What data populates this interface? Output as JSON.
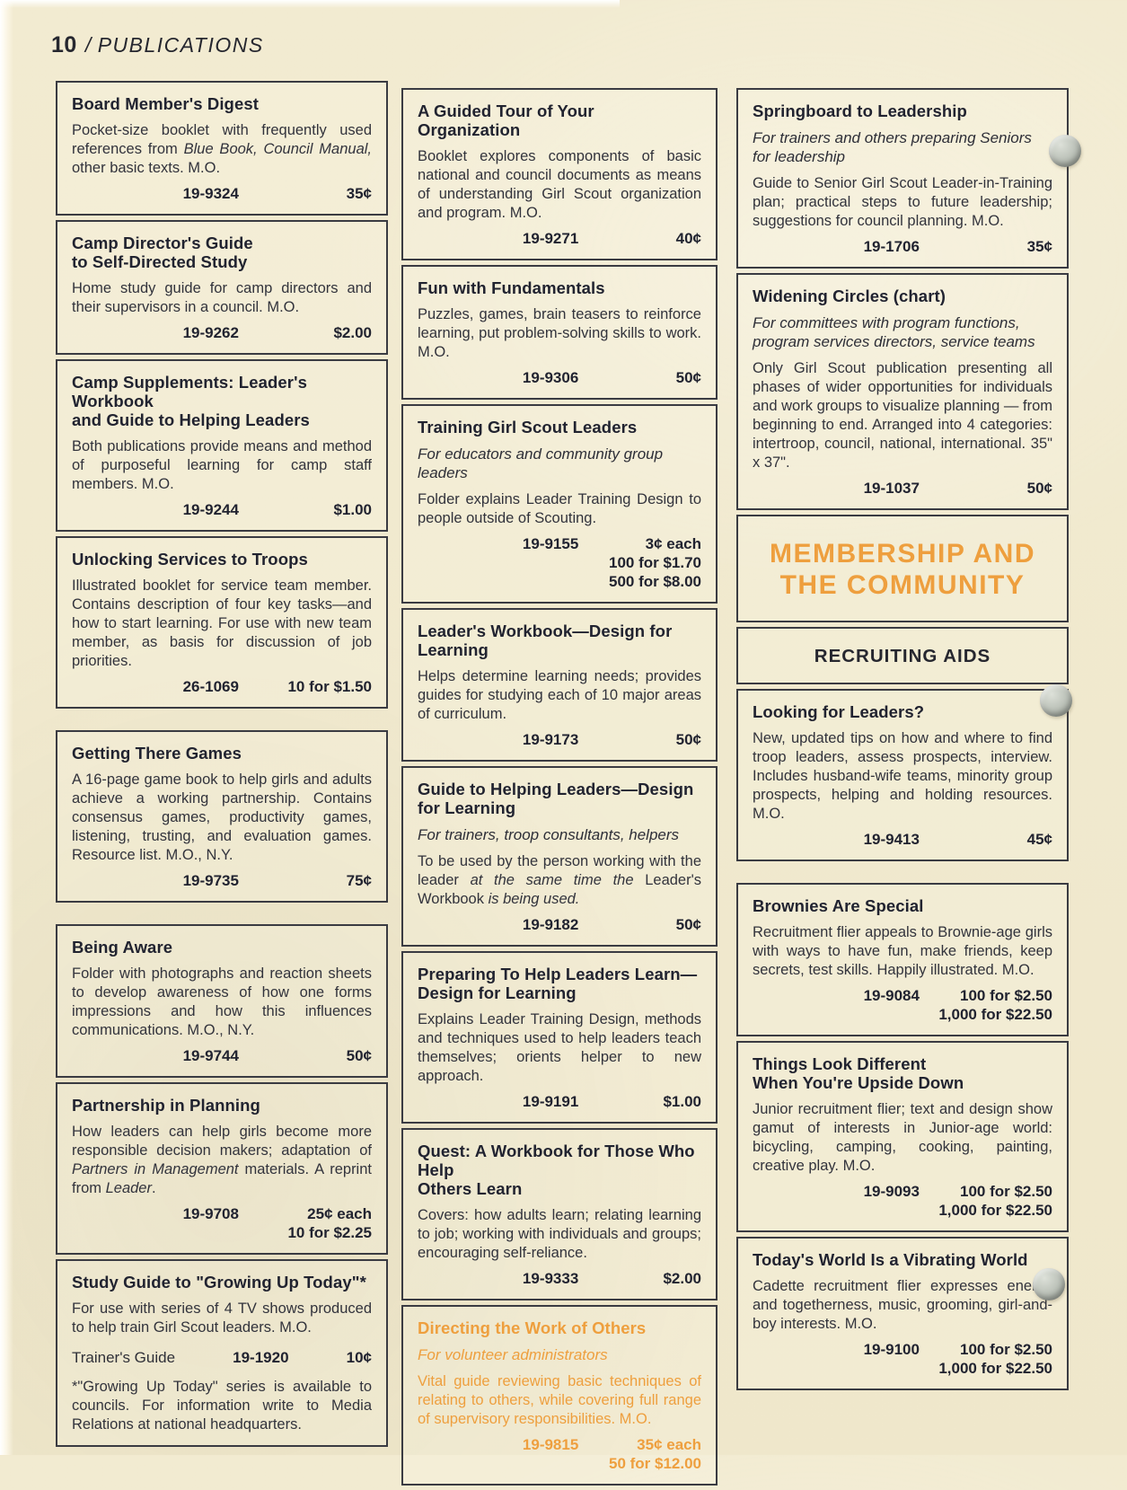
{
  "page": {
    "number": "10",
    "separator": "/",
    "title": "PUBLICATIONS"
  },
  "colors": {
    "accent_orange": "#ee9f3e",
    "paper": "#f1ead0",
    "ink": "#2f3038",
    "border": "#3a3b42"
  },
  "columns": [
    {
      "sections": [
        {
          "type": "item",
          "title": "Board Member's Digest",
          "body": "Pocket-size booklet with frequently used references from *Blue Book, Council Manual,* other basic texts. M.O.",
          "catalog_no": "19-9324",
          "prices": [
            "35¢"
          ]
        },
        {
          "type": "item",
          "title": "Camp Director's Guide\nto Self-Directed Study",
          "body": "Home study guide for camp directors and their supervisors in a council. M.O.",
          "catalog_no": "19-9262",
          "prices": [
            "$2.00"
          ]
        },
        {
          "type": "item",
          "title": "Camp Supplements: Leader's Workbook\nand Guide to Helping Leaders",
          "body": "Both publications provide means and method of purposeful learning for camp staff members. M.O.",
          "catalog_no": "19-9244",
          "prices": [
            "$1.00"
          ]
        },
        {
          "type": "item",
          "title": "Unlocking Services to Troops",
          "body": "Illustrated booklet for service team member. Contains description of four key tasks—and how to start learning. For use with new team member, as basis for discussion of job priorities.",
          "catalog_no": "26-1069",
          "prices": [
            "10 for $1.50"
          ]
        },
        {
          "type": "item",
          "gap_before": true,
          "title": "Getting There Games",
          "body": "A 16-page game book to help girls and adults achieve a working partnership. Contains consensus games, productivity games, listening, trusting, and evaluation games. Resource list. M.O., N.Y.",
          "catalog_no": "19-9735",
          "prices": [
            "75¢"
          ]
        },
        {
          "type": "item",
          "gap_before": true,
          "title": "Being Aware",
          "body": "Folder with photographs and reaction sheets to develop awareness of how one forms impressions and how this influences communications. M.O., N.Y.",
          "catalog_no": "19-9744",
          "prices": [
            "50¢"
          ]
        },
        {
          "type": "item",
          "title": "Partnership in Planning",
          "body": "How leaders can help girls become more responsible decision makers; adaptation of *Partners in Management* materials. A reprint from *Leader*.",
          "catalog_no": "19-9708",
          "prices": [
            "25¢ each",
            "10 for $2.25"
          ]
        },
        {
          "type": "item",
          "title": "Study Guide to \"Growing Up Today\"*",
          "body": "For use with series of 4 TV shows produced to help train Girl Scout leaders. M.O.",
          "rows": [
            {
              "label": "Trainer's Guide",
              "catalog_no": "19-1920",
              "price": "10¢"
            }
          ],
          "footnote": "*\"Growing Up Today\" series is available to councils. For information write to Media Relations at national headquarters."
        }
      ]
    },
    {
      "sections": [
        {
          "type": "item",
          "title": "A Guided Tour of Your Organization",
          "body": "Booklet explores components of basic national and council documents as means of understanding Girl Scout organization and program. M.O.",
          "catalog_no": "19-9271",
          "prices": [
            "40¢"
          ]
        },
        {
          "type": "item",
          "title": "Fun with Fundamentals",
          "body": "Puzzles, games, brain teasers to reinforce learning, put problem-solving skills to work. M.O.",
          "catalog_no": "19-9306",
          "prices": [
            "50¢"
          ]
        },
        {
          "type": "item",
          "title": "Training Girl Scout Leaders",
          "subtitle": "For educators and community group leaders",
          "body": "Folder explains Leader Training Design to people outside of Scouting.",
          "catalog_no": "19-9155",
          "prices": [
            "3¢ each",
            "100 for $1.70",
            "500 for $8.00"
          ]
        },
        {
          "type": "item",
          "title": "Leader's Workbook—Design for Learning",
          "body": "Helps determine learning needs; provides guides for studying each of 10 major areas of curriculum.",
          "catalog_no": "19-9173",
          "prices": [
            "50¢"
          ]
        },
        {
          "type": "item",
          "title": "Guide to Helping Leaders—Design\nfor Learning",
          "subtitle": "For trainers, troop consultants, helpers",
          "body": "To be used by the person working with the leader *at the same time the* Leader's Workbook *is being used.*",
          "catalog_no": "19-9182",
          "prices": [
            "50¢"
          ]
        },
        {
          "type": "item",
          "title": "Preparing To Help Leaders Learn—\nDesign for Learning",
          "body": "Explains Leader Training Design, methods and techniques used to help leaders teach themselves; orients helper to new approach.",
          "catalog_no": "19-9191",
          "prices": [
            "$1.00"
          ]
        },
        {
          "type": "item",
          "title": "Quest: A Workbook for Those Who Help\nOthers Learn",
          "body": "Covers: how adults learn; relating learning to job; working with individuals and groups; encouraging self-reliance.",
          "catalog_no": "19-9333",
          "prices": [
            "$2.00"
          ]
        },
        {
          "type": "item",
          "accent": true,
          "title": "Directing the Work of Others",
          "subtitle": "For volunteer administrators",
          "body": "Vital guide reviewing basic techniques of relating to others, while covering full range of supervisory responsibilities. M.O.",
          "catalog_no": "19-9815",
          "prices": [
            "35¢ each",
            "50 for $12.00"
          ]
        }
      ]
    },
    {
      "sections": [
        {
          "type": "item",
          "title": "Springboard to Leadership",
          "subtitle": "For trainers and others preparing Seniors for leadership",
          "body": "Guide to Senior Girl Scout Leader-in-Training plan; practical steps to future leadership; suggestions for council planning. M.O.",
          "catalog_no": "19-1706",
          "prices": [
            "35¢"
          ]
        },
        {
          "type": "item",
          "title": "Widening Circles (chart)",
          "subtitle": "For committees with program functions, program services directors, service teams",
          "body": "Only Girl Scout publication presenting all phases of wider opportunities for individuals and work groups to visualize planning — from beginning to end. Arranged into 4 categories: intertroop, council, national, international. 35\" x 37\".",
          "catalog_no": "19-1037",
          "prices": [
            "50¢"
          ]
        },
        {
          "type": "banner",
          "title": "MEMBERSHIP AND\nTHE COMMUNITY"
        },
        {
          "type": "subbanner",
          "title": "RECRUITING AIDS"
        },
        {
          "type": "item",
          "title": "Looking for Leaders?",
          "body": "New, updated tips on how and where to find troop leaders, assess prospects, interview. Includes husband-wife teams, minority group prospects, helping and holding resources. M.O.",
          "catalog_no": "19-9413",
          "prices": [
            "45¢"
          ]
        },
        {
          "type": "item",
          "gap_before": true,
          "title": "Brownies Are Special",
          "body": "Recruitment flier appeals to Brownie-age girls with ways to have fun, make friends, keep secrets, test skills. Happily illustrated. M.O.",
          "catalog_no": "19-9084",
          "prices": [
            "100 for $2.50",
            "1,000 for $22.50"
          ]
        },
        {
          "type": "item",
          "title": "Things Look Different\nWhen You're Upside Down",
          "body": "Junior recruitment flier; text and design show gamut of interests in Junior-age world: bicycling, camping, cooking, painting, creative play. M.O.",
          "catalog_no": "19-9093",
          "prices": [
            "100 for $2.50",
            "1,000 for $22.50"
          ]
        },
        {
          "type": "item",
          "title": "Today's World Is a Vibrating World",
          "body": "Cadette recruitment flier expresses energy and togetherness, music, grooming, girl-and-boy interests. M.O.",
          "catalog_no": "19-9100",
          "prices": [
            "100 for $2.50",
            "1,000 for $22.50"
          ]
        }
      ]
    }
  ]
}
